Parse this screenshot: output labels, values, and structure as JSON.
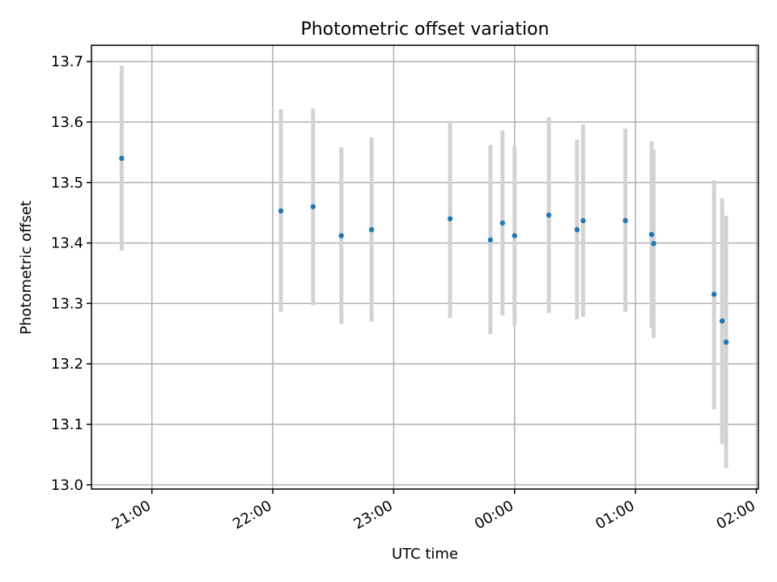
{
  "chart_data": {
    "type": "scatter",
    "title": "Photometric offset variation",
    "xlabel": "UTC time",
    "ylabel": "Photometric offset",
    "x_unit": "UTC time",
    "xlim": [
      "20:30",
      "02:01"
    ],
    "ylim": [
      12.993,
      13.727
    ],
    "grid": true,
    "marker_color": "#1f77b4",
    "errorbar_color": "#d3d3d3",
    "x_ticks": [
      "21:00",
      "22:00",
      "23:00",
      "00:00",
      "01:00",
      "02:00"
    ],
    "y_ticks": [
      13.0,
      13.1,
      13.2,
      13.3,
      13.4,
      13.5,
      13.6,
      13.7
    ],
    "y_tick_labels": [
      "13.0",
      "13.1",
      "13.2",
      "13.3",
      "13.4",
      "13.5",
      "13.6",
      "13.7"
    ],
    "points": [
      {
        "x": "20:45",
        "y": 13.54,
        "ylow": 13.387,
        "yhigh": 13.693
      },
      {
        "x": "22:04",
        "y": 13.453,
        "ylow": 13.286,
        "yhigh": 13.621
      },
      {
        "x": "22:20",
        "y": 13.46,
        "ylow": 13.297,
        "yhigh": 13.622
      },
      {
        "x": "22:34",
        "y": 13.412,
        "ylow": 13.266,
        "yhigh": 13.558
      },
      {
        "x": "22:49",
        "y": 13.422,
        "ylow": 13.27,
        "yhigh": 13.575
      },
      {
        "x": "23:28",
        "y": 13.44,
        "ylow": 13.276,
        "yhigh": 13.602
      },
      {
        "x": "23:48",
        "y": 13.405,
        "ylow": 13.249,
        "yhigh": 13.562
      },
      {
        "x": "23:54",
        "y": 13.433,
        "ylow": 13.28,
        "yhigh": 13.586
      },
      {
        "x": "00:00",
        "y": 13.412,
        "ylow": 13.264,
        "yhigh": 13.559
      },
      {
        "x": "00:17",
        "y": 13.446,
        "ylow": 13.284,
        "yhigh": 13.608
      },
      {
        "x": "00:31",
        "y": 13.422,
        "ylow": 13.274,
        "yhigh": 13.571
      },
      {
        "x": "00:34",
        "y": 13.437,
        "ylow": 13.278,
        "yhigh": 13.596
      },
      {
        "x": "00:55",
        "y": 13.437,
        "ylow": 13.286,
        "yhigh": 13.589
      },
      {
        "x": "01:08",
        "y": 13.414,
        "ylow": 13.259,
        "yhigh": 13.568
      },
      {
        "x": "01:09",
        "y": 13.399,
        "ylow": 13.243,
        "yhigh": 13.555
      },
      {
        "x": "01:39",
        "y": 13.315,
        "ylow": 13.125,
        "yhigh": 13.504
      },
      {
        "x": "01:43",
        "y": 13.271,
        "ylow": 13.067,
        "yhigh": 13.474
      },
      {
        "x": "01:45",
        "y": 13.236,
        "ylow": 13.028,
        "yhigh": 13.445
      }
    ]
  }
}
